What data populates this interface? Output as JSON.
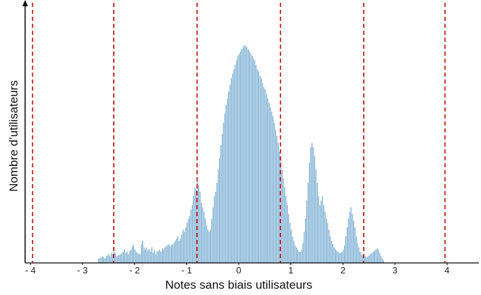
{
  "chart_data": {
    "type": "bar",
    "title": "",
    "xlabel": "Notes sans biais utilisateurs",
    "ylabel": "Nombre d’utilisateurs",
    "xlim": [
      -4.1,
      4.7
    ],
    "ylim": [
      0,
      1
    ],
    "grid": false,
    "legend": "none",
    "x_ticks": [
      {
        "value": -4,
        "label": "- 4"
      },
      {
        "value": -3,
        "label": "- 3"
      },
      {
        "value": -2,
        "label": "- 2"
      },
      {
        "value": -1,
        "label": "- 1"
      },
      {
        "value": 0,
        "label": "0"
      },
      {
        "value": 1,
        "label": "1"
      },
      {
        "value": 2,
        "label": "2"
      },
      {
        "value": 3,
        "label": "3"
      },
      {
        "value": 4,
        "label": "4"
      }
    ],
    "reference_lines_x": [
      -3.96,
      -2.4,
      -0.8,
      0.8,
      2.4,
      3.96
    ],
    "colors": {
      "bars": "#5b9bc8",
      "reference_lines": "#c00000",
      "axis": "#000000"
    },
    "bins": {
      "start": -2.7,
      "width": 0.025,
      "values": [
        0.02,
        0.02,
        0.025,
        0.03,
        0.025,
        0.02,
        0.03,
        0.035,
        0.04,
        0.03,
        0.045,
        0.04,
        0.05,
        0.045,
        0.03,
        0.035,
        0.035,
        0.04,
        0.045,
        0.05,
        0.06,
        0.045,
        0.05,
        0.04,
        0.055,
        0.06,
        0.075,
        0.08,
        0.06,
        0.05,
        0.045,
        0.04,
        0.04,
        0.085,
        0.1,
        0.07,
        0.06,
        0.07,
        0.055,
        0.065,
        0.05,
        0.07,
        0.045,
        0.06,
        0.04,
        0.05,
        0.055,
        0.06,
        0.05,
        0.065,
        0.06,
        0.07,
        0.075,
        0.08,
        0.085,
        0.075,
        0.08,
        0.085,
        0.09,
        0.1,
        0.11,
        0.12,
        0.1,
        0.11,
        0.13,
        0.15,
        0.14,
        0.16,
        0.18,
        0.2,
        0.21,
        0.24,
        0.26,
        0.3,
        0.34,
        0.33,
        0.37,
        0.35,
        0.32,
        0.27,
        0.25,
        0.23,
        0.2,
        0.17,
        0.15,
        0.14,
        0.15,
        0.2,
        0.25,
        0.3,
        0.32,
        0.36,
        0.42,
        0.47,
        0.53,
        0.58,
        0.63,
        0.67,
        0.71,
        0.74,
        0.77,
        0.8,
        0.83,
        0.85,
        0.87,
        0.89,
        0.91,
        0.93,
        0.94,
        0.95,
        0.96,
        0.97,
        0.98,
        0.975,
        0.97,
        0.96,
        0.95,
        0.94,
        0.93,
        0.92,
        0.91,
        0.89,
        0.87,
        0.86,
        0.84,
        0.83,
        0.81,
        0.79,
        0.78,
        0.76,
        0.74,
        0.72,
        0.7,
        0.68,
        0.66,
        0.63,
        0.6,
        0.57,
        0.54,
        0.5,
        0.46,
        0.42,
        0.38,
        0.34,
        0.3,
        0.26,
        0.22,
        0.18,
        0.15,
        0.12,
        0.1,
        0.08,
        0.07,
        0.06,
        0.05,
        0.05,
        0.06,
        0.09,
        0.14,
        0.2,
        0.28,
        0.36,
        0.45,
        0.52,
        0.54,
        0.52,
        0.48,
        0.42,
        0.36,
        0.3,
        0.26,
        0.28,
        0.3,
        0.26,
        0.23,
        0.2,
        0.18,
        0.15,
        0.12,
        0.1,
        0.085,
        0.07,
        0.06,
        0.055,
        0.05,
        0.045,
        0.045,
        0.05,
        0.06,
        0.08,
        0.12,
        0.16,
        0.2,
        0.23,
        0.25,
        0.22,
        0.19,
        0.16,
        0.12,
        0.09,
        0.07,
        0.05,
        0.04,
        0.035,
        0.03,
        0.03,
        0.025,
        0.03,
        0.035,
        0.04,
        0.045,
        0.05,
        0.055,
        0.06,
        0.065,
        0.06,
        0.045,
        0.03,
        0.02,
        0.012
      ]
    }
  }
}
